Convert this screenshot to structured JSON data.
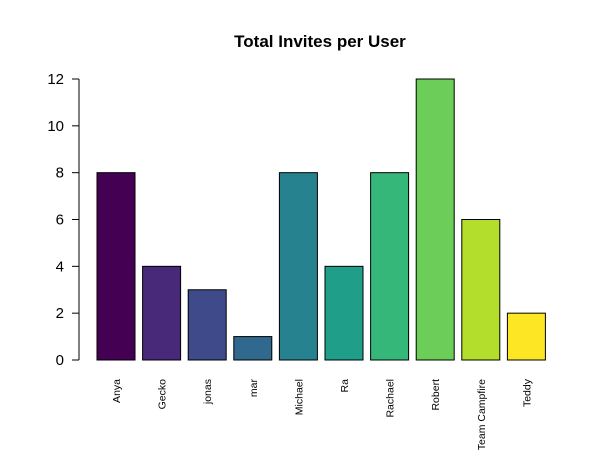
{
  "chart_data": {
    "type": "bar",
    "title": "Total Invites per User",
    "xlabel": "",
    "ylabel": "",
    "categories": [
      "Anya",
      "Gecko",
      "jonas",
      "mar",
      "Michael",
      "Ra",
      "Rachael",
      "Robert",
      "Team Campfire",
      "Teddy"
    ],
    "values": [
      8,
      4,
      3,
      1,
      8,
      4,
      8,
      12,
      6,
      2
    ],
    "colors": [
      "#440154",
      "#482878",
      "#3E4A89",
      "#31688E",
      "#26828E",
      "#1F9E89",
      "#35B779",
      "#6DCD59",
      "#B4DE2C",
      "#FDE725"
    ],
    "ylim": [
      0,
      12
    ],
    "yticks": [
      0,
      2,
      4,
      6,
      8,
      10,
      12
    ],
    "grid": false,
    "legend": "none"
  }
}
